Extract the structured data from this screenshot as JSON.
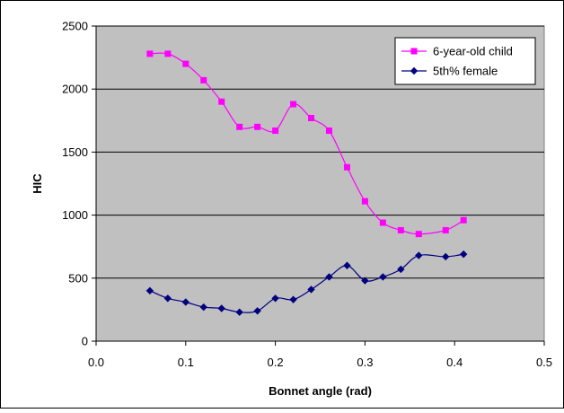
{
  "chart_data": {
    "type": "line",
    "title": "",
    "xlabel": "Bonnet angle (rad)",
    "ylabel": "HIC",
    "xlim": [
      0,
      0.5
    ],
    "ylim": [
      0,
      2500
    ],
    "x_ticks": [
      "0.0",
      "0.1",
      "0.2",
      "0.3",
      "0.4",
      "0.5"
    ],
    "y_ticks": [
      "0",
      "500",
      "1000",
      "1500",
      "2000",
      "2500"
    ],
    "grid": "horizontal",
    "legend": "top-right",
    "plot_background": "#c0c0c0",
    "series": [
      {
        "name": "6-year-old child",
        "color": "#ff00ff",
        "marker": "square",
        "x": [
          0.06,
          0.08,
          0.1,
          0.12,
          0.14,
          0.16,
          0.18,
          0.2,
          0.22,
          0.24,
          0.26,
          0.28,
          0.3,
          0.32,
          0.34,
          0.36,
          0.39,
          0.41
        ],
        "y": [
          2280,
          2280,
          2200,
          2070,
          1900,
          1700,
          1700,
          1670,
          1880,
          1770,
          1670,
          1380,
          1110,
          940,
          880,
          850,
          880,
          960
        ]
      },
      {
        "name": "5th% female",
        "color": "#000080",
        "marker": "diamond",
        "x": [
          0.06,
          0.08,
          0.1,
          0.12,
          0.14,
          0.16,
          0.18,
          0.2,
          0.22,
          0.24,
          0.26,
          0.28,
          0.3,
          0.32,
          0.34,
          0.36,
          0.39,
          0.41
        ],
        "y": [
          400,
          340,
          310,
          270,
          260,
          230,
          240,
          340,
          330,
          410,
          510,
          600,
          480,
          510,
          570,
          680,
          670,
          690
        ]
      }
    ]
  }
}
